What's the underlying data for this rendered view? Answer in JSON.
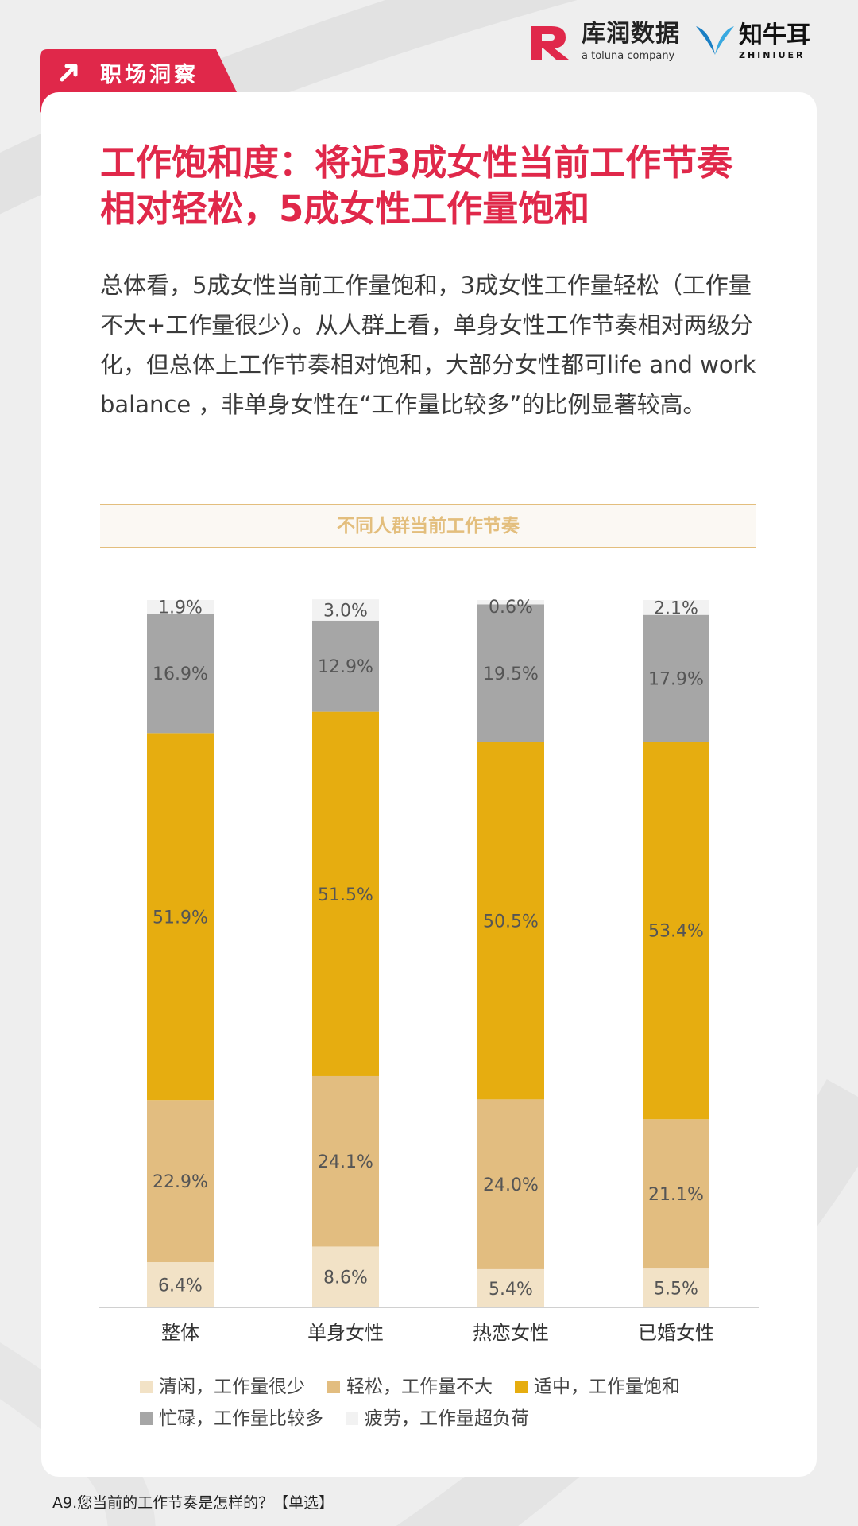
{
  "tag": {
    "label": "职场洞察"
  },
  "logos": {
    "kurun_cn": "库润数据",
    "kurun_en": "a toluna company",
    "zhiniu_cn": "知牛耳",
    "zhiniu_en": "ZHINIUER"
  },
  "title": "工作饱和度：将近3成女性当前工作节奏相对轻松，5成女性工作量饱和",
  "paragraph": "总体看，5成女性当前工作量饱和，3成女性工作量轻松（工作量不大+工作量很少）。从人群上看，单身女性工作节奏相对两级分化，但总体上工作节奏相对饱和，大部分女性都可life and work  balance ，非单身女性在“工作量比较多”的比例显著较高。",
  "chart_data": {
    "type": "bar",
    "stacked": true,
    "title": "不同人群当前工作节奏",
    "categories": [
      "整体",
      "单身女性",
      "热恋女性",
      "已婚女性"
    ],
    "unit": "%",
    "series": [
      {
        "name": "清闲，工作量很少",
        "color": "#f2e2c6",
        "values": [
          6.4,
          8.6,
          5.4,
          5.5
        ]
      },
      {
        "name": "轻松，工作量不大",
        "color": "#e2bd80",
        "values": [
          22.9,
          24.1,
          24.0,
          21.1
        ]
      },
      {
        "name": "适中，工作量饱和",
        "color": "#e6ad10",
        "values": [
          51.9,
          51.5,
          50.5,
          53.4
        ]
      },
      {
        "name": "忙碌，工作量比较多",
        "color": "#a6a6a6",
        "values": [
          16.9,
          12.9,
          19.5,
          17.9
        ]
      },
      {
        "name": "疲劳，工作量超负荷",
        "color": "#f2f2f2",
        "values": [
          1.9,
          3.0,
          0.6,
          2.1
        ]
      }
    ],
    "legend_position": "bottom",
    "grid": false
  },
  "footnote": "A9.您当前的工作节奏是怎样的？【单选】"
}
